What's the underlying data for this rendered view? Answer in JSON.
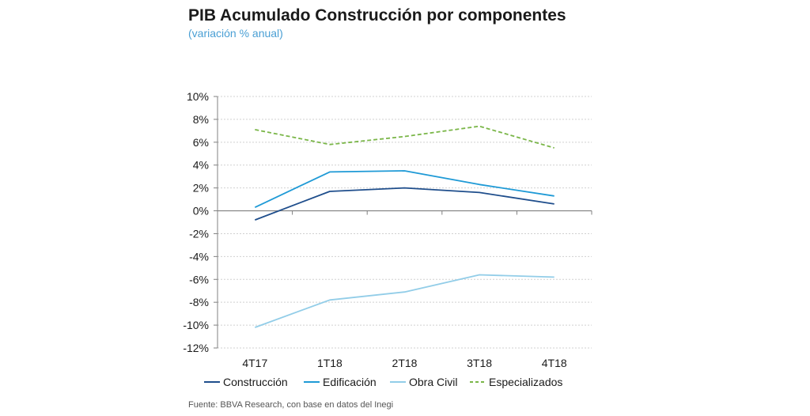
{
  "chart_data": {
    "type": "line",
    "title": "PIB Acumulado Construcción por componentes",
    "subtitle": "(variación % anual)",
    "categories": [
      "4T17",
      "1T18",
      "2T18",
      "3T18",
      "4T18"
    ],
    "ylim": [
      -12,
      10
    ],
    "yticks": [
      10,
      8,
      6,
      4,
      2,
      0,
      -2,
      -4,
      -6,
      -8,
      -10,
      -12
    ],
    "ytick_labels": [
      "10%",
      "8%",
      "6%",
      "4%",
      "2%",
      "0%",
      "-2%",
      "-4%",
      "-6%",
      "-8%",
      "-10%",
      "-12%"
    ],
    "grid": true,
    "legend_position": "bottom",
    "series": [
      {
        "name": "Construcción",
        "values": [
          -0.8,
          1.7,
          2.0,
          1.6,
          0.6
        ],
        "color": "#1f4e8c",
        "dash": "solid"
      },
      {
        "name": "Edificación",
        "values": [
          0.3,
          3.4,
          3.5,
          2.3,
          1.3
        ],
        "color": "#1f9ad6",
        "dash": "solid"
      },
      {
        "name": "Obra Civil",
        "values": [
          -10.2,
          -7.8,
          -7.1,
          -5.6,
          -5.8
        ],
        "color": "#92cde8",
        "dash": "solid"
      },
      {
        "name": "Especializados",
        "values": [
          7.1,
          5.8,
          6.5,
          7.4,
          5.5
        ],
        "color": "#7ab648",
        "dash": "dashed"
      }
    ]
  },
  "footer": {
    "source": "Fuente: BBVA Research, con base en datos del Inegi"
  }
}
